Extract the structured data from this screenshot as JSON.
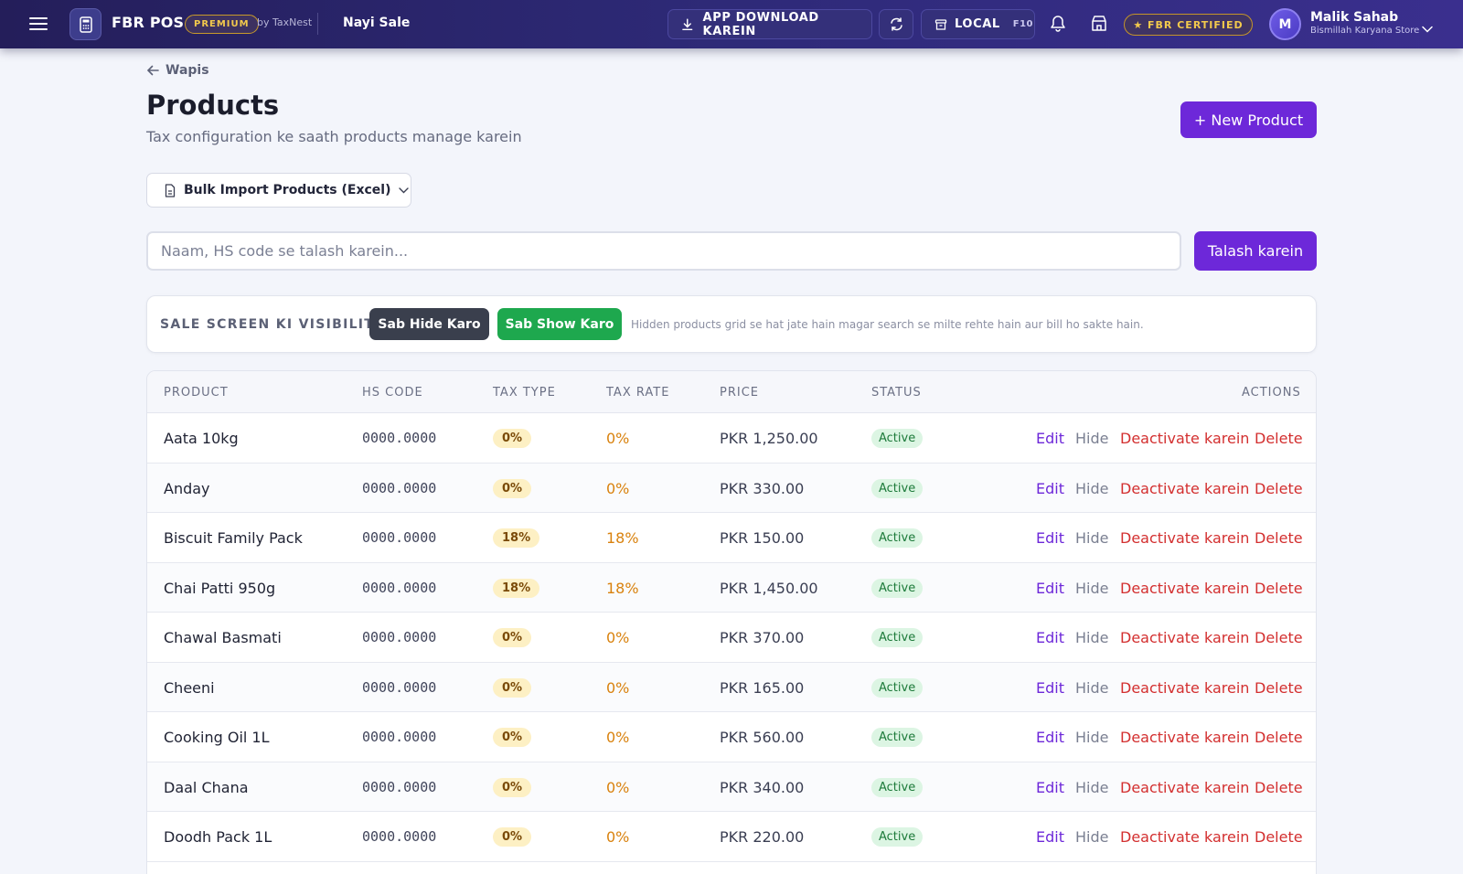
{
  "header": {
    "brand": "FBR POS",
    "premium_label": "PREMIUM",
    "byline": "by TaxNest",
    "nav_link": "Nayi Sale",
    "download_label": "APP DOWNLOAD KAREIN",
    "local_label": "LOCAL",
    "local_shortcut": "F10",
    "fbr_badge": "★ FBR CERTIFIED",
    "user_initial": "M",
    "user_name": "Malik Sahab",
    "user_store": "Bismillah Karyana Store"
  },
  "page": {
    "back_label": "Wapis",
    "title": "Products",
    "subtitle": "Tax configuration ke saath products manage karein",
    "new_button": "+ New Product",
    "bulk_import_label": "Bulk Import Products (Excel)"
  },
  "search": {
    "placeholder": "Naam, HS code se talash karein...",
    "value": "",
    "button": "Talash karein"
  },
  "visibility": {
    "label": "SALE SCREEN KI VISIBILITY",
    "hide_all": "Sab Hide Karo",
    "show_all": "Sab Show Karo",
    "hint": "Hidden products grid se hat jate hain magar search se milte rehte hain aur bill ho sakte hain."
  },
  "table": {
    "columns": [
      "PRODUCT",
      "HS CODE",
      "TAX TYPE",
      "TAX RATE",
      "PRICE",
      "STATUS",
      "ACTIONS"
    ],
    "action_labels": {
      "edit": "Edit",
      "hide": "Hide",
      "deactivate": "Deactivate karein",
      "delete": "Delete"
    },
    "rows": [
      {
        "name": "Aata 10kg",
        "hs": "0000.0000",
        "type": "0%",
        "rate": "0%",
        "price": "PKR 1,250.00",
        "status": "Active"
      },
      {
        "name": "Anday",
        "hs": "0000.0000",
        "type": "0%",
        "rate": "0%",
        "price": "PKR 330.00",
        "status": "Active"
      },
      {
        "name": "Biscuit Family Pack",
        "hs": "0000.0000",
        "type": "18%",
        "rate": "18%",
        "price": "PKR 150.00",
        "status": "Active"
      },
      {
        "name": "Chai Patti 950g",
        "hs": "0000.0000",
        "type": "18%",
        "rate": "18%",
        "price": "PKR 1,450.00",
        "status": "Active"
      },
      {
        "name": "Chawal Basmati",
        "hs": "0000.0000",
        "type": "0%",
        "rate": "0%",
        "price": "PKR 370.00",
        "status": "Active"
      },
      {
        "name": "Cheeni",
        "hs": "0000.0000",
        "type": "0%",
        "rate": "0%",
        "price": "PKR 165.00",
        "status": "Active"
      },
      {
        "name": "Cooking Oil 1L",
        "hs": "0000.0000",
        "type": "0%",
        "rate": "0%",
        "price": "PKR 560.00",
        "status": "Active"
      },
      {
        "name": "Daal Chana",
        "hs": "0000.0000",
        "type": "0%",
        "rate": "0%",
        "price": "PKR 340.00",
        "status": "Active"
      },
      {
        "name": "Doodh Pack 1L",
        "hs": "0000.0000",
        "type": "0%",
        "rate": "0%",
        "price": "PKR 220.00",
        "status": "Active"
      }
    ]
  },
  "colors": {
    "accent": "#6d28d9",
    "header": "#2e2a78",
    "danger": "#d32f2f",
    "success": "#1ea84e",
    "tax_rate": "#d9820e"
  },
  "icons": {
    "menu": "hamburger-menu-icon",
    "app": "calculator-icon",
    "download": "download-icon",
    "sync": "refresh-icon",
    "local": "archive-box-icon",
    "notifications": "bell-icon",
    "store": "store-icon",
    "user_menu": "chevron-down-icon",
    "back": "arrow-left-icon",
    "bulk": "document-icon"
  }
}
